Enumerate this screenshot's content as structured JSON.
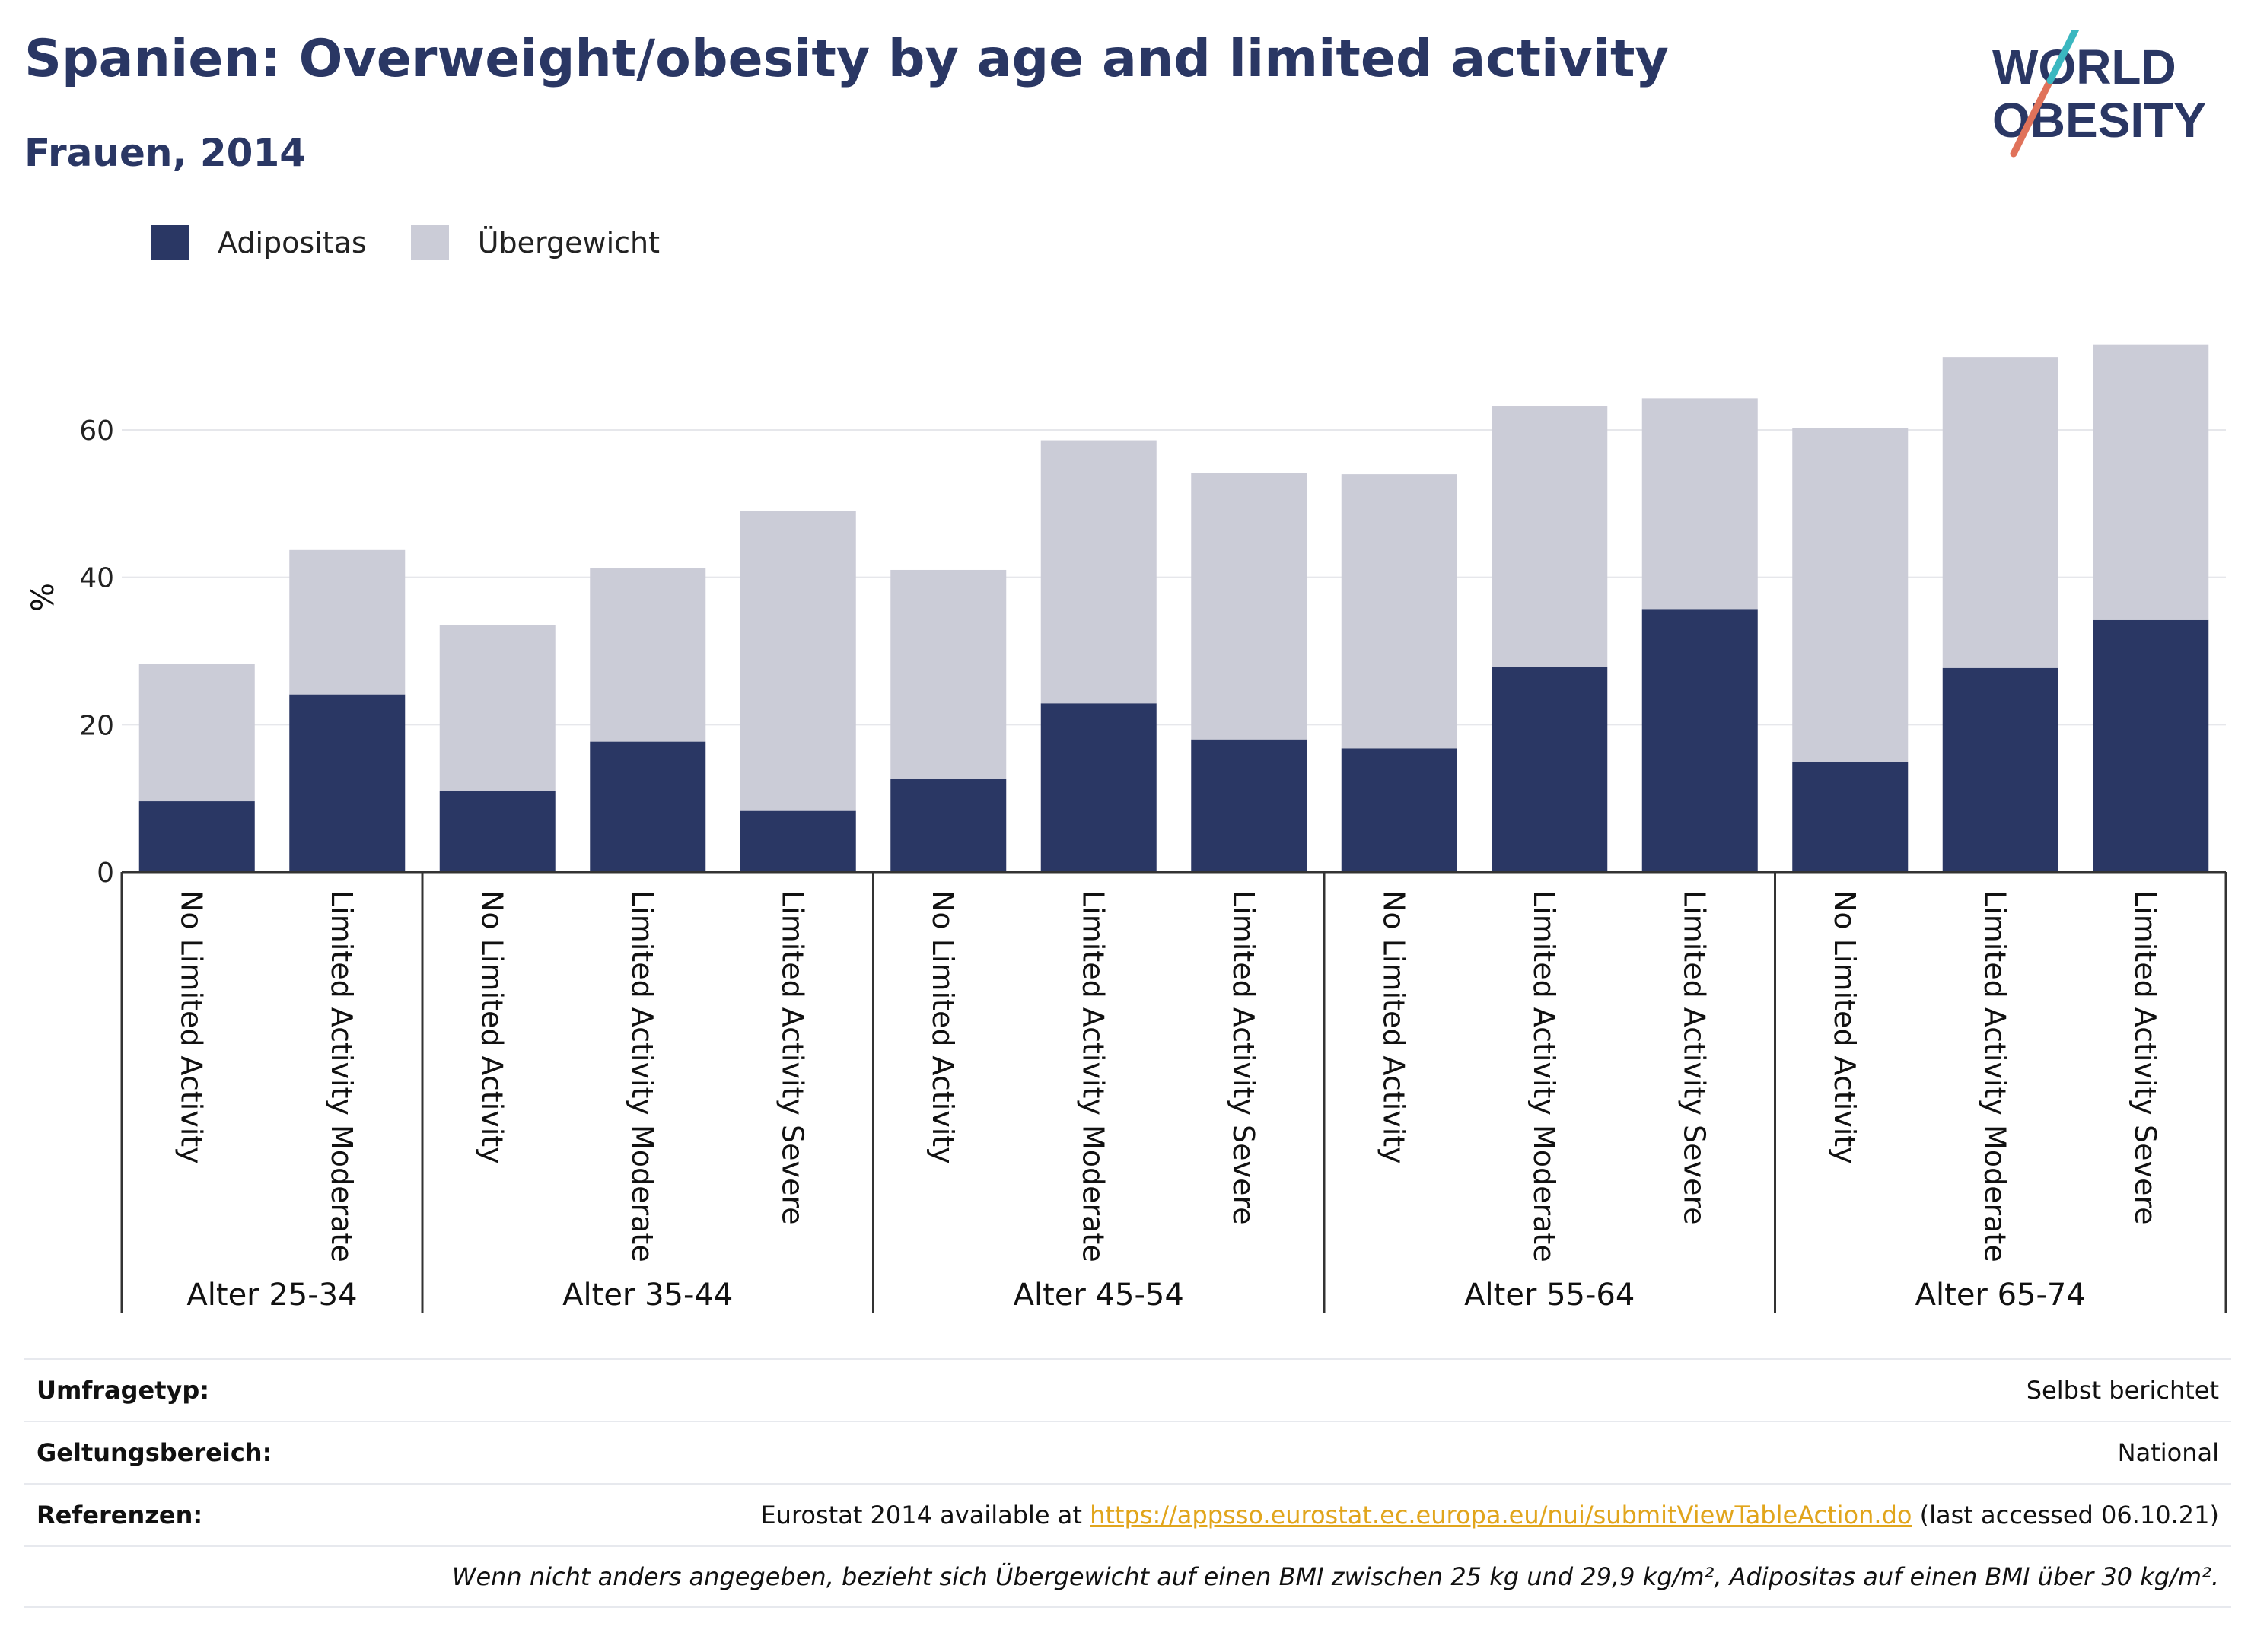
{
  "header": {
    "title": "Spanien: Overweight/obesity by age and limited activity",
    "subtitle": "Frauen, 2014"
  },
  "logo": {
    "line1": "WORLD",
    "line2": "OBESITY"
  },
  "legend": [
    {
      "label": "Adipositas",
      "color": "#2a3764"
    },
    {
      "label": "Übergewicht",
      "color": "#cbccd7"
    }
  ],
  "chart_data": {
    "type": "bar",
    "stacked": true,
    "ylabel": "%",
    "ylim": [
      0,
      75
    ],
    "yticks": [
      0,
      20,
      40,
      60
    ],
    "grid": true,
    "legend_position": "top-left",
    "groups": [
      {
        "label": "Alter 25-34",
        "categories": [
          "No Limited Activity",
          "Limited Activity Moderate"
        ]
      },
      {
        "label": "Alter 35-44",
        "categories": [
          "No Limited Activity",
          "Limited Activity Moderate",
          "Limited Activity Severe"
        ]
      },
      {
        "label": "Alter 45-54",
        "categories": [
          "No Limited Activity",
          "Limited Activity Moderate",
          "Limited Activity Severe"
        ]
      },
      {
        "label": "Alter 55-64",
        "categories": [
          "No Limited Activity",
          "Limited Activity Moderate",
          "Limited Activity Severe"
        ]
      },
      {
        "label": "Alter 65-74",
        "categories": [
          "No Limited Activity",
          "Limited Activity Moderate",
          "Limited Activity Severe"
        ]
      }
    ],
    "series": [
      {
        "name": "Adipositas",
        "color": "#2a3764",
        "values": [
          9.6,
          24.1,
          11.0,
          17.7,
          8.3,
          12.6,
          22.9,
          18.0,
          16.8,
          27.8,
          35.7,
          14.9,
          27.7,
          34.2
        ]
      },
      {
        "name": "Übergewicht",
        "color": "#cbccd7",
        "values": [
          18.6,
          19.6,
          22.5,
          23.6,
          40.7,
          28.4,
          35.7,
          36.2,
          37.2,
          35.4,
          28.6,
          45.4,
          42.2,
          37.4
        ]
      }
    ]
  },
  "info": {
    "survey_label": "Umfragetyp:",
    "survey_value": "Selbst berichtet",
    "scope_label": "Geltungsbereich:",
    "scope_value": "National",
    "refs_label": "Referenzen:",
    "refs_prefix": "Eurostat 2014 available at ",
    "refs_link": "https://appsso.eurostat.ec.europa.eu/nui/submitViewTableAction.do",
    "refs_suffix": " (last accessed 06.10.21)",
    "note": "Wenn nicht anders angegeben, bezieht sich Übergewicht auf einen BMI zwischen 25 kg und 29,9 kg/m², Adipositas auf einen BMI über 30 kg/m²."
  }
}
